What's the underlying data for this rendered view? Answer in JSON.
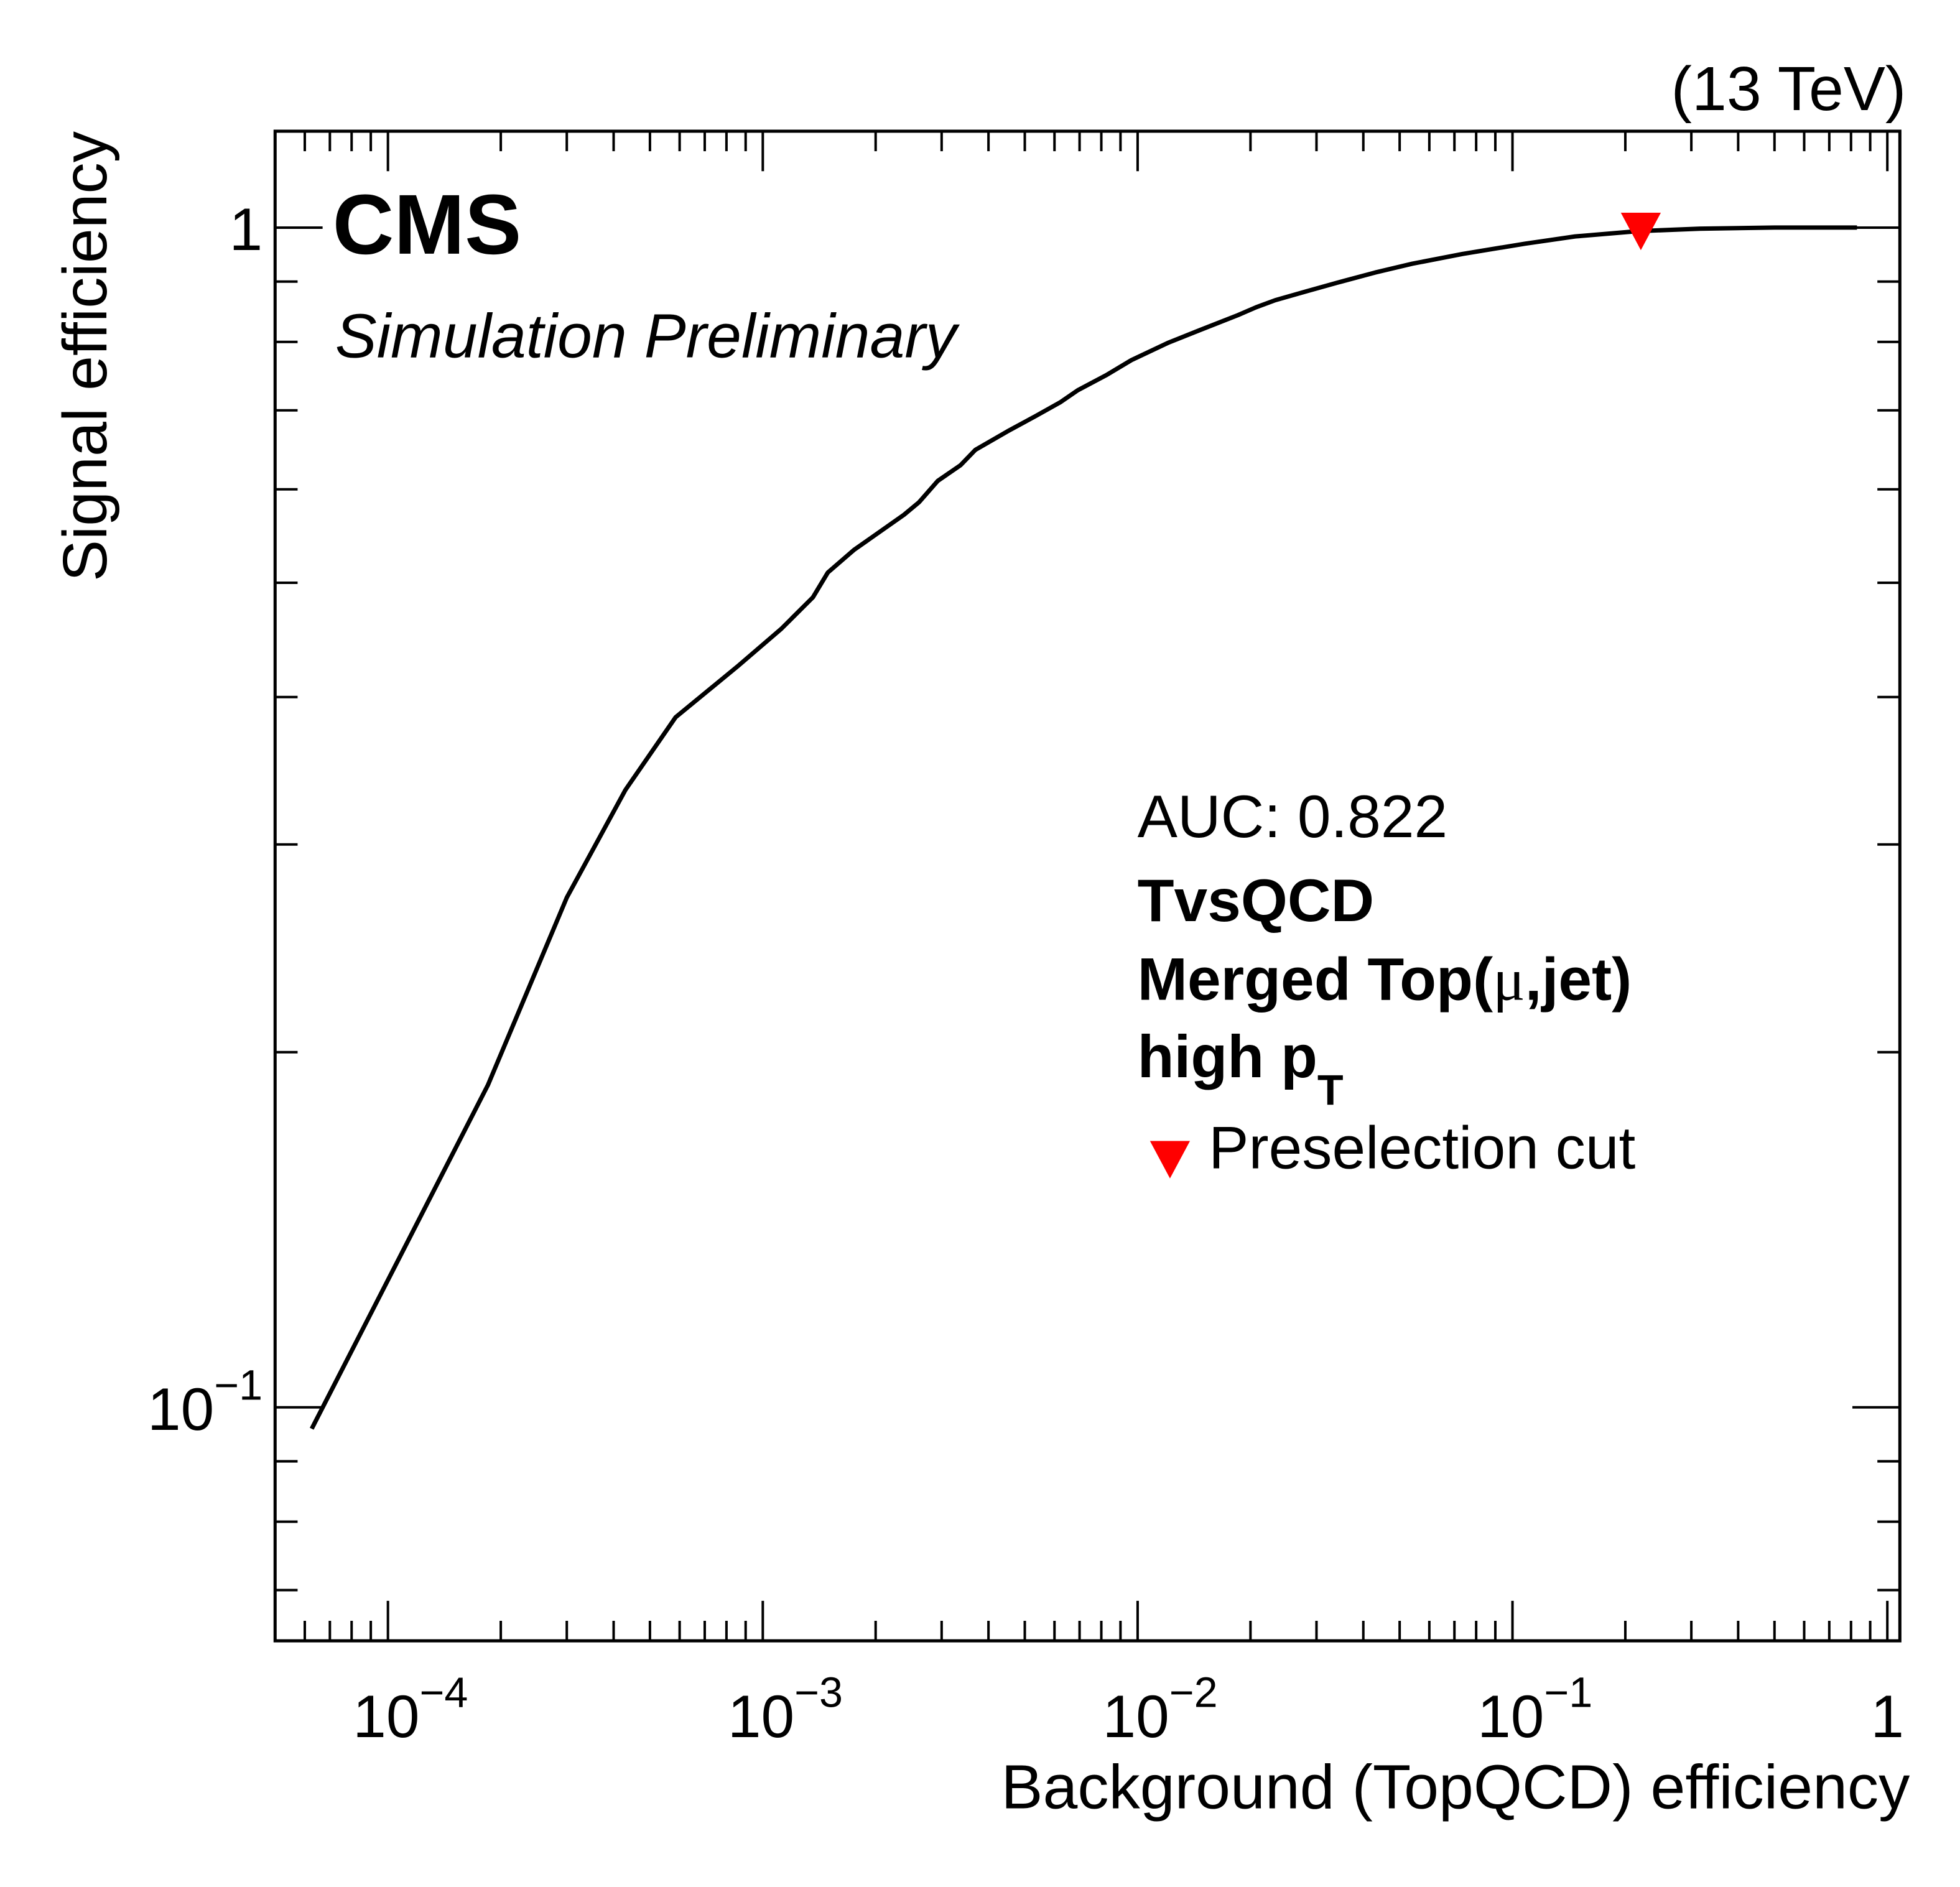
{
  "chart_data": {
    "type": "line",
    "energy_label": "(13 TeV)",
    "experiment": "CMS",
    "status": "Simulation Preliminary",
    "xlabel": "Background (TopQCD) efficiency",
    "ylabel": "Signal efficiency",
    "xscale": "log",
    "yscale": "log",
    "xlim": [
      5e-05,
      1.08
    ],
    "ylim": [
      0.0634,
      1.207
    ],
    "grid": false,
    "x_tick_labels": [
      {
        "base": "10",
        "exp": "−4",
        "value": 0.0001
      },
      {
        "base": "10",
        "exp": "−3",
        "value": 0.001
      },
      {
        "base": "10",
        "exp": "−2",
        "value": 0.01
      },
      {
        "base": "10",
        "exp": "−1",
        "value": 0.1
      },
      {
        "base": "1",
        "exp": "",
        "value": 1
      }
    ],
    "y_tick_labels": [
      {
        "base": "1",
        "exp": "",
        "value": 1
      },
      {
        "base": "10",
        "exp": "−1",
        "value": 0.1
      }
    ],
    "annotations": {
      "auc": "AUC: 0.822",
      "tagger": "TvsQCD",
      "category_prefix": "Merged Top(",
      "category_mu": "μ",
      "category_suffix": ",jet)",
      "pt_prefix": "high p",
      "pt_sub": "T"
    },
    "legend": {
      "marker_label": "Preselection cut",
      "marker_color": "#ff0000",
      "marker_shape": "triangle-down"
    },
    "series": [
      {
        "color": "#000000",
        "x": [
          6.26e-05,
          0.000185,
          0.0003,
          0.00043,
          0.000585,
          0.000858,
          0.00112,
          0.00136,
          0.00149,
          0.00175,
          0.00238,
          0.00261,
          0.00293,
          0.00337,
          0.00369,
          0.0045,
          0.00533,
          0.00621,
          0.00692,
          0.00826,
          0.00962,
          0.0121,
          0.0147,
          0.0185,
          0.0207,
          0.0233,
          0.0282,
          0.0341,
          0.043,
          0.0541,
          0.0736,
          0.108,
          0.147,
          0.215,
          0.316,
          0.5,
          0.83
        ],
        "y": [
          0.0959,
          0.1877,
          0.2705,
          0.3337,
          0.3845,
          0.4249,
          0.457,
          0.486,
          0.51,
          0.533,
          0.571,
          0.585,
          0.61,
          0.629,
          0.648,
          0.672,
          0.692,
          0.711,
          0.728,
          0.75,
          0.772,
          0.799,
          0.819,
          0.843,
          0.856,
          0.868,
          0.883,
          0.898,
          0.916,
          0.932,
          0.95,
          0.969,
          0.983,
          0.993,
          0.998,
          1.0,
          1.0
        ]
      }
    ],
    "markers": [
      {
        "label": "Preselection cut",
        "x": 0.22,
        "y": 0.995,
        "color": "#ff0000"
      }
    ]
  }
}
